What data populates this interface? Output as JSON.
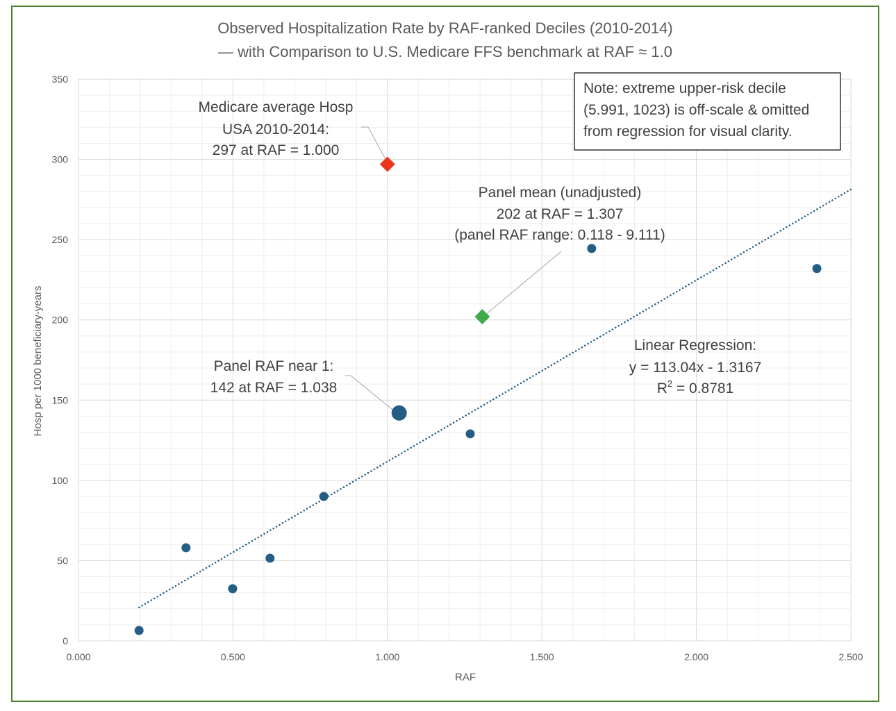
{
  "chart_data": {
    "type": "scatter",
    "title": "Observed Hospitalization Rate by  RAF-ranked Deciles (2010-2014)",
    "subtitle": "— with Comparison to U.S. Medicare FFS benchmark at RAF ≈ 1.0",
    "xlabel": "RAF",
    "ylabel": "Hosp per 1000 beneficiary-years",
    "xlim": [
      0,
      2.5
    ],
    "ylim": [
      0,
      350
    ],
    "x_ticks": [
      "0.000",
      "0.500",
      "1.000",
      "1.500",
      "2.000",
      "2.500"
    ],
    "y_ticks": [
      "0",
      "50",
      "100",
      "150",
      "200",
      "250",
      "300",
      "350"
    ],
    "grid": true,
    "minor_grid": true,
    "series": [
      {
        "marker": "circle",
        "color": "#255e85",
        "points": [
          {
            "x": 0.196,
            "y": 6.5
          },
          {
            "x": 0.348,
            "y": 58
          },
          {
            "x": 0.499,
            "y": 32.5
          },
          {
            "x": 0.62,
            "y": 51.5
          },
          {
            "x": 0.794,
            "y": 90
          },
          {
            "x": 1.038,
            "y": 142,
            "highlight": true
          },
          {
            "x": 1.268,
            "y": 129
          },
          {
            "x": 1.661,
            "y": 244.5
          },
          {
            "x": 2.39,
            "y": 232
          }
        ]
      },
      {
        "marker": "diamond",
        "color": "#e8361c",
        "points": [
          {
            "x": 1.0,
            "y": 297
          }
        ]
      },
      {
        "marker": "diamond",
        "color": "#3faa4a",
        "points": [
          {
            "x": 1.307,
            "y": 202
          }
        ]
      }
    ],
    "trendline": {
      "slope": 113.04,
      "intercept": -1.3167,
      "x_range": [
        0.196,
        2.5
      ],
      "style": "dotted",
      "color": "#255e85"
    },
    "annotations": {
      "medicare": [
        "Medicare average Hosp",
        "USA 2010-2014:",
        "297 at RAF = 1.000"
      ],
      "panel_mean": [
        "Panel  mean (unadjusted)",
        "202 at RAF = 1.307",
        "(panel RAF range: 0.118 - 9.111)"
      ],
      "near_one": [
        "Panel RAF near 1:",
        "142 at RAF = 1.038"
      ],
      "regression": [
        "Linear Regression:",
        "y = 113.04x - 1.3167",
        "R",
        "2",
        " = 0.8781"
      ],
      "note": [
        "Note: extreme upper-risk decile",
        "(5.991, 1023) is off-scale & omitted",
        "from regression for visual clarity."
      ]
    }
  }
}
